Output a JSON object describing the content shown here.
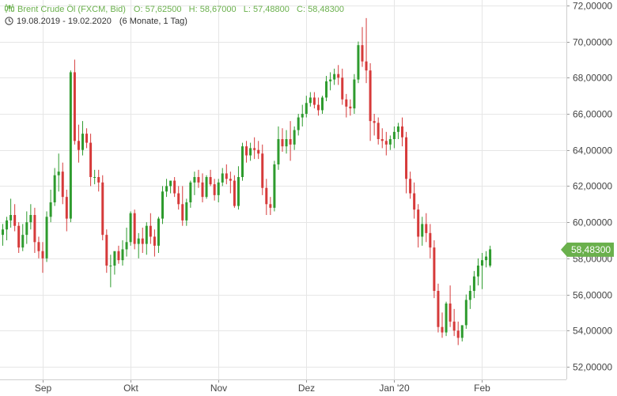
{
  "header": {
    "instrument": "Brent Crude Öl (FXCM, Bid)",
    "ohlc": "O: 57,62500   H: 58,67000   L: 57,48800   C: 58,48300",
    "date_range": "19.08.2019 - 19.02.2020",
    "range_info": "(6 Monate, 1 Tag)"
  },
  "colors": {
    "up": "#2e9b2e",
    "down": "#d63a3a",
    "grid": "#e6e6e6",
    "price_tag": "#6ab04c"
  },
  "chart_data": {
    "type": "candlestick",
    "title": "Brent Crude Öl (FXCM, Bid)",
    "ylim": [
      51.3,
      72.3
    ],
    "y_ticks": [
      52,
      54,
      56,
      58,
      60,
      62,
      64,
      66,
      68,
      70,
      72
    ],
    "y_tick_labels": [
      "52,00000",
      "54,00000",
      "56,00000",
      "58,00000",
      "60,00000",
      "62,00000",
      "64,00000",
      "66,00000",
      "68,00000",
      "70,00000",
      "72,00000"
    ],
    "x_ticks": [
      {
        "label": "Sep",
        "i": 10
      },
      {
        "label": "Okt",
        "i": 32
      },
      {
        "label": "Nov",
        "i": 54
      },
      {
        "label": "Dez",
        "i": 76
      },
      {
        "label": "Jan '20",
        "i": 98
      },
      {
        "label": "Feb",
        "i": 120
      }
    ],
    "last_price": 58.483,
    "last_price_label": "58,48300",
    "candles": [
      [
        59.3,
        59.9,
        58.7,
        59.6
      ],
      [
        59.6,
        60.3,
        59.0,
        60.1
      ],
      [
        60.1,
        61.3,
        59.7,
        60.4
      ],
      [
        60.4,
        61.0,
        59.5,
        59.8
      ],
      [
        59.8,
        60.0,
        58.3,
        58.6
      ],
      [
        58.6,
        59.9,
        58.4,
        59.3
      ],
      [
        59.3,
        60.6,
        58.8,
        60.0
      ],
      [
        60.0,
        61.0,
        59.6,
        60.4
      ],
      [
        60.4,
        60.8,
        58.3,
        58.9
      ],
      [
        58.9,
        59.2,
        58.0,
        58.4
      ],
      [
        58.4,
        58.9,
        57.2,
        58.0
      ],
      [
        58.0,
        60.6,
        57.8,
        60.3
      ],
      [
        60.3,
        61.8,
        60.0,
        61.1
      ],
      [
        61.1,
        63.0,
        60.9,
        62.6
      ],
      [
        62.6,
        63.8,
        61.7,
        62.8
      ],
      [
        62.8,
        63.3,
        61.0,
        61.4
      ],
      [
        61.4,
        61.8,
        59.5,
        60.2
      ],
      [
        60.2,
        68.4,
        60.0,
        68.3
      ],
      [
        68.3,
        69.0,
        64.3,
        64.5
      ],
      [
        64.5,
        65.4,
        63.3,
        64.0
      ],
      [
        64.0,
        65.6,
        63.7,
        64.9
      ],
      [
        64.9,
        65.2,
        64.1,
        64.4
      ],
      [
        64.4,
        64.9,
        62.0,
        62.5
      ],
      [
        62.5,
        62.9,
        62.1,
        62.5
      ],
      [
        62.5,
        62.9,
        61.7,
        62.2
      ],
      [
        62.2,
        62.6,
        59.0,
        59.3
      ],
      [
        59.3,
        59.6,
        57.2,
        57.6
      ],
      [
        57.6,
        58.2,
        56.4,
        57.6
      ],
      [
        57.6,
        58.3,
        57.1,
        58.4
      ],
      [
        58.4,
        58.7,
        57.7,
        57.9
      ],
      [
        57.9,
        59.0,
        57.6,
        58.5
      ],
      [
        58.5,
        59.7,
        58.1,
        58.9
      ],
      [
        58.9,
        60.6,
        58.7,
        60.5
      ],
      [
        60.5,
        60.7,
        58.5,
        58.8
      ],
      [
        58.8,
        59.4,
        58.0,
        59.1
      ],
      [
        59.1,
        59.7,
        58.3,
        58.8
      ],
      [
        58.8,
        60.0,
        58.2,
        59.8
      ],
      [
        59.8,
        60.5,
        58.8,
        59.2
      ],
      [
        59.2,
        59.6,
        58.1,
        58.7
      ],
      [
        58.7,
        60.3,
        58.3,
        60.2
      ],
      [
        60.2,
        62.0,
        59.9,
        61.7
      ],
      [
        61.7,
        62.4,
        61.4,
        62.0
      ],
      [
        62.0,
        62.3,
        61.6,
        62.3
      ],
      [
        62.3,
        62.5,
        61.4,
        61.6
      ],
      [
        61.6,
        62.0,
        60.7,
        61.0
      ],
      [
        61.0,
        62.0,
        59.8,
        60.1
      ],
      [
        60.1,
        61.3,
        59.8,
        61.1
      ],
      [
        61.1,
        62.3,
        60.8,
        62.2
      ],
      [
        62.2,
        62.8,
        61.5,
        62.5
      ],
      [
        62.5,
        62.9,
        61.9,
        62.2
      ],
      [
        62.2,
        62.7,
        61.1,
        61.4
      ],
      [
        61.4,
        62.6,
        61.3,
        62.5
      ],
      [
        62.5,
        62.9,
        62.0,
        62.1
      ],
      [
        62.1,
        62.4,
        61.2,
        61.5
      ],
      [
        61.5,
        62.4,
        61.1,
        62.2
      ],
      [
        62.2,
        63.0,
        62.0,
        62.7
      ],
      [
        62.7,
        63.2,
        62.1,
        62.4
      ],
      [
        62.4,
        62.8,
        61.6,
        62.3
      ],
      [
        62.3,
        62.6,
        60.8,
        60.9
      ],
      [
        60.9,
        63.1,
        60.7,
        62.5
      ],
      [
        62.5,
        64.4,
        62.3,
        64.2
      ],
      [
        64.2,
        64.5,
        63.3,
        63.7
      ],
      [
        63.7,
        64.4,
        63.4,
        64.1
      ],
      [
        64.1,
        64.7,
        63.5,
        64.0
      ],
      [
        64.0,
        64.5,
        63.5,
        63.8
      ],
      [
        63.8,
        64.3,
        61.5,
        61.9
      ],
      [
        61.9,
        62.4,
        60.4,
        61.0
      ],
      [
        61.0,
        61.4,
        60.4,
        60.8
      ],
      [
        60.8,
        63.4,
        60.6,
        63.2
      ],
      [
        63.2,
        65.3,
        62.9,
        64.6
      ],
      [
        64.6,
        65.2,
        63.9,
        64.2
      ],
      [
        64.2,
        65.1,
        63.8,
        64.6
      ],
      [
        64.6,
        65.6,
        63.4,
        64.3
      ],
      [
        64.3,
        65.3,
        64.0,
        65.1
      ],
      [
        65.1,
        66.0,
        64.8,
        65.8
      ],
      [
        65.8,
        66.5,
        65.3,
        66.0
      ],
      [
        66.0,
        67.0,
        65.8,
        66.6
      ],
      [
        66.6,
        67.2,
        66.4,
        66.9
      ],
      [
        66.9,
        67.2,
        66.3,
        66.5
      ],
      [
        66.5,
        66.9,
        65.9,
        66.2
      ],
      [
        66.2,
        67.0,
        66.0,
        66.9
      ],
      [
        66.9,
        68.1,
        66.7,
        67.8
      ],
      [
        67.8,
        68.3,
        67.3,
        67.9
      ],
      [
        67.9,
        68.5,
        67.6,
        68.2
      ],
      [
        68.2,
        68.7,
        67.6,
        68.0
      ],
      [
        68.0,
        68.5,
        66.5,
        66.8
      ],
      [
        66.8,
        67.1,
        65.8,
        66.4
      ],
      [
        66.4,
        66.8,
        65.9,
        66.3
      ],
      [
        66.3,
        68.2,
        66.0,
        67.9
      ],
      [
        67.9,
        70.0,
        67.7,
        69.8
      ],
      [
        69.8,
        70.8,
        68.6,
        68.9
      ],
      [
        68.9,
        71.3,
        67.7,
        68.4
      ],
      [
        68.4,
        68.8,
        64.5,
        65.6
      ],
      [
        65.6,
        66.0,
        64.8,
        65.5
      ],
      [
        65.5,
        65.8,
        64.3,
        64.6
      ],
      [
        64.6,
        65.2,
        64.1,
        64.5
      ],
      [
        64.5,
        65.0,
        63.7,
        64.3
      ],
      [
        64.3,
        64.8,
        64.0,
        64.6
      ],
      [
        64.6,
        65.3,
        64.1,
        65.0
      ],
      [
        65.0,
        65.5,
        64.6,
        65.3
      ],
      [
        65.3,
        65.8,
        64.2,
        64.7
      ],
      [
        64.7,
        65.0,
        61.6,
        62.4
      ],
      [
        62.4,
        62.8,
        61.3,
        61.6
      ],
      [
        61.6,
        62.2,
        60.2,
        60.7
      ],
      [
        60.7,
        61.0,
        58.6,
        59.2
      ],
      [
        59.2,
        60.3,
        58.7,
        59.9
      ],
      [
        59.9,
        60.5,
        58.9,
        59.4
      ],
      [
        59.4,
        59.9,
        58.0,
        58.6
      ],
      [
        58.6,
        59.0,
        55.8,
        56.2
      ],
      [
        56.2,
        56.6,
        53.9,
        54.2
      ],
      [
        54.2,
        55.0,
        53.6,
        53.9
      ],
      [
        53.9,
        55.6,
        53.7,
        55.5
      ],
      [
        55.5,
        56.5,
        54.2,
        54.5
      ],
      [
        54.5,
        55.2,
        53.7,
        54.0
      ],
      [
        54.0,
        54.5,
        53.2,
        53.6
      ],
      [
        53.6,
        54.3,
        53.4,
        54.3
      ],
      [
        54.3,
        56.0,
        54.1,
        55.7
      ],
      [
        55.7,
        56.5,
        55.2,
        56.2
      ],
      [
        56.2,
        57.3,
        55.8,
        57.0
      ],
      [
        57.0,
        58.0,
        56.5,
        57.6
      ],
      [
        57.6,
        58.3,
        56.3,
        57.9
      ],
      [
        57.9,
        58.4,
        57.5,
        58.1
      ],
      [
        57.6,
        58.7,
        57.5,
        58.5
      ]
    ]
  }
}
